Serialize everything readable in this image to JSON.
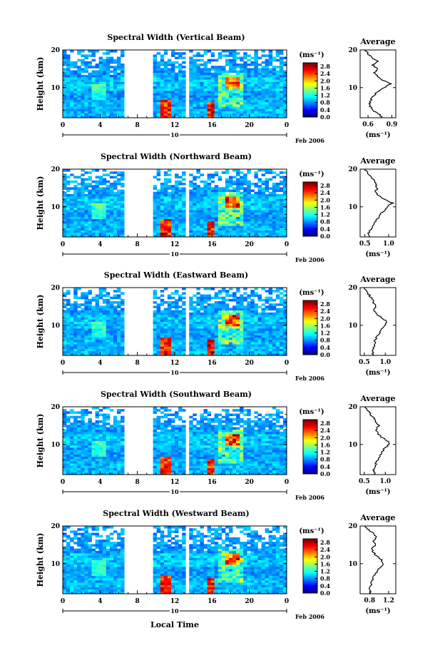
{
  "chart_data": {
    "type": "heatmap",
    "common": {
      "xticks": [
        "0",
        "4",
        "8",
        "12",
        "16",
        "20",
        "0"
      ],
      "xlim": [
        0,
        24
      ],
      "yticks": [
        "10",
        "20"
      ],
      "ylim": [
        2,
        20
      ],
      "ylabel": "Height (km)",
      "date_day": "10",
      "date_label": "Feb 2006",
      "colorbar_unit": "(ms⁻¹)",
      "colorbar_ticks": [
        "0.0",
        "0.4",
        "0.8",
        "1.2",
        "1.6",
        "2.0",
        "2.4",
        "2.8"
      ],
      "colorbar_range": [
        0.0,
        3.0
      ],
      "xlabel": "Local Time",
      "avg_title": "Average",
      "avg_unit": "(ms⁻¹)",
      "gaps": [
        [
          6.7,
          9.7
        ],
        [
          13.2,
          13.7
        ]
      ],
      "colors": {
        "low": "#1a33c8",
        "mid": "#33aaff",
        "high": "#e23322",
        "ink": "#000000"
      }
    },
    "panels": [
      {
        "title": "Spectral Width (Vertical Beam)",
        "avg_xticks": [
          "0.6",
          "0.9"
        ],
        "avg_xlim": [
          0.5,
          0.95
        ],
        "avg_profile": [
          [
            2,
            0.78
          ],
          [
            3,
            0.74
          ],
          [
            4,
            0.66
          ],
          [
            5,
            0.63
          ],
          [
            6,
            0.62
          ],
          [
            7,
            0.64
          ],
          [
            8,
            0.68
          ],
          [
            9,
            0.72
          ],
          [
            10,
            0.8
          ],
          [
            11,
            0.88
          ],
          [
            12,
            0.78
          ],
          [
            13,
            0.72
          ],
          [
            14,
            0.68
          ],
          [
            15,
            0.72
          ],
          [
            16,
            0.66
          ],
          [
            17,
            0.72
          ],
          [
            18,
            0.65
          ],
          [
            19,
            0.6
          ],
          [
            20,
            0.56
          ]
        ]
      },
      {
        "title": "Spectral Width (Northward Beam)",
        "avg_xticks": [
          "0.5",
          "1.0"
        ],
        "avg_xlim": [
          0.4,
          1.15
        ],
        "avg_profile": [
          [
            2,
            0.62
          ],
          [
            3,
            0.58
          ],
          [
            4,
            0.62
          ],
          [
            5,
            0.66
          ],
          [
            6,
            0.72
          ],
          [
            7,
            0.78
          ],
          [
            8,
            0.82
          ],
          [
            9,
            0.9
          ],
          [
            10,
            0.98
          ],
          [
            11,
            1.08
          ],
          [
            12,
            0.9
          ],
          [
            13,
            0.78
          ],
          [
            14,
            0.72
          ],
          [
            15,
            0.76
          ],
          [
            16,
            0.72
          ],
          [
            17,
            0.7
          ],
          [
            18,
            0.62
          ],
          [
            19,
            0.55
          ],
          [
            20,
            0.5
          ]
        ]
      },
      {
        "title": "Spectral Width (Eastward Beam)",
        "avg_xticks": [
          "0.5",
          "1.0"
        ],
        "avg_xlim": [
          0.4,
          1.25
        ],
        "avg_profile": [
          [
            2,
            0.7
          ],
          [
            3,
            0.7
          ],
          [
            4,
            0.72
          ],
          [
            5,
            0.74
          ],
          [
            6,
            0.76
          ],
          [
            7,
            0.8
          ],
          [
            8,
            0.86
          ],
          [
            9,
            0.92
          ],
          [
            10,
            1.0
          ],
          [
            11,
            1.05
          ],
          [
            12,
            0.9
          ],
          [
            13,
            0.8
          ],
          [
            14,
            0.72
          ],
          [
            15,
            0.78
          ],
          [
            16,
            0.72
          ],
          [
            17,
            0.68
          ],
          [
            18,
            0.62
          ],
          [
            19,
            0.55
          ],
          [
            20,
            0.5
          ]
        ]
      },
      {
        "title": "Spectral Width (Southward Beam)",
        "avg_xticks": [
          "0.5",
          "1.0"
        ],
        "avg_xlim": [
          0.4,
          1.25
        ],
        "avg_profile": [
          [
            2,
            0.75
          ],
          [
            3,
            0.72
          ],
          [
            4,
            0.74
          ],
          [
            5,
            0.78
          ],
          [
            6,
            0.82
          ],
          [
            7,
            0.86
          ],
          [
            8,
            0.92
          ],
          [
            9,
            0.98
          ],
          [
            10,
            1.1
          ],
          [
            11,
            1.05
          ],
          [
            12,
            0.9
          ],
          [
            13,
            0.82
          ],
          [
            14,
            0.78
          ],
          [
            15,
            0.85
          ],
          [
            16,
            0.78
          ],
          [
            17,
            0.72
          ],
          [
            18,
            0.65
          ],
          [
            19,
            0.58
          ],
          [
            20,
            0.52
          ]
        ]
      },
      {
        "title": "Spectral Width (Westward Beam)",
        "avg_xticks": [
          "0.8",
          "1.2"
        ],
        "avg_xlim": [
          0.6,
          1.35
        ],
        "avg_profile": [
          [
            2,
            0.82
          ],
          [
            3,
            0.8
          ],
          [
            4,
            0.82
          ],
          [
            5,
            0.84
          ],
          [
            6,
            0.86
          ],
          [
            7,
            0.9
          ],
          [
            8,
            0.96
          ],
          [
            9,
            1.02
          ],
          [
            10,
            1.1
          ],
          [
            11,
            1.05
          ],
          [
            12,
            0.95
          ],
          [
            13,
            0.88
          ],
          [
            14,
            0.85
          ],
          [
            15,
            0.92
          ],
          [
            16,
            0.88
          ],
          [
            17,
            0.95
          ],
          [
            18,
            0.88
          ],
          [
            19,
            0.78
          ],
          [
            20,
            0.7
          ]
        ]
      }
    ]
  }
}
